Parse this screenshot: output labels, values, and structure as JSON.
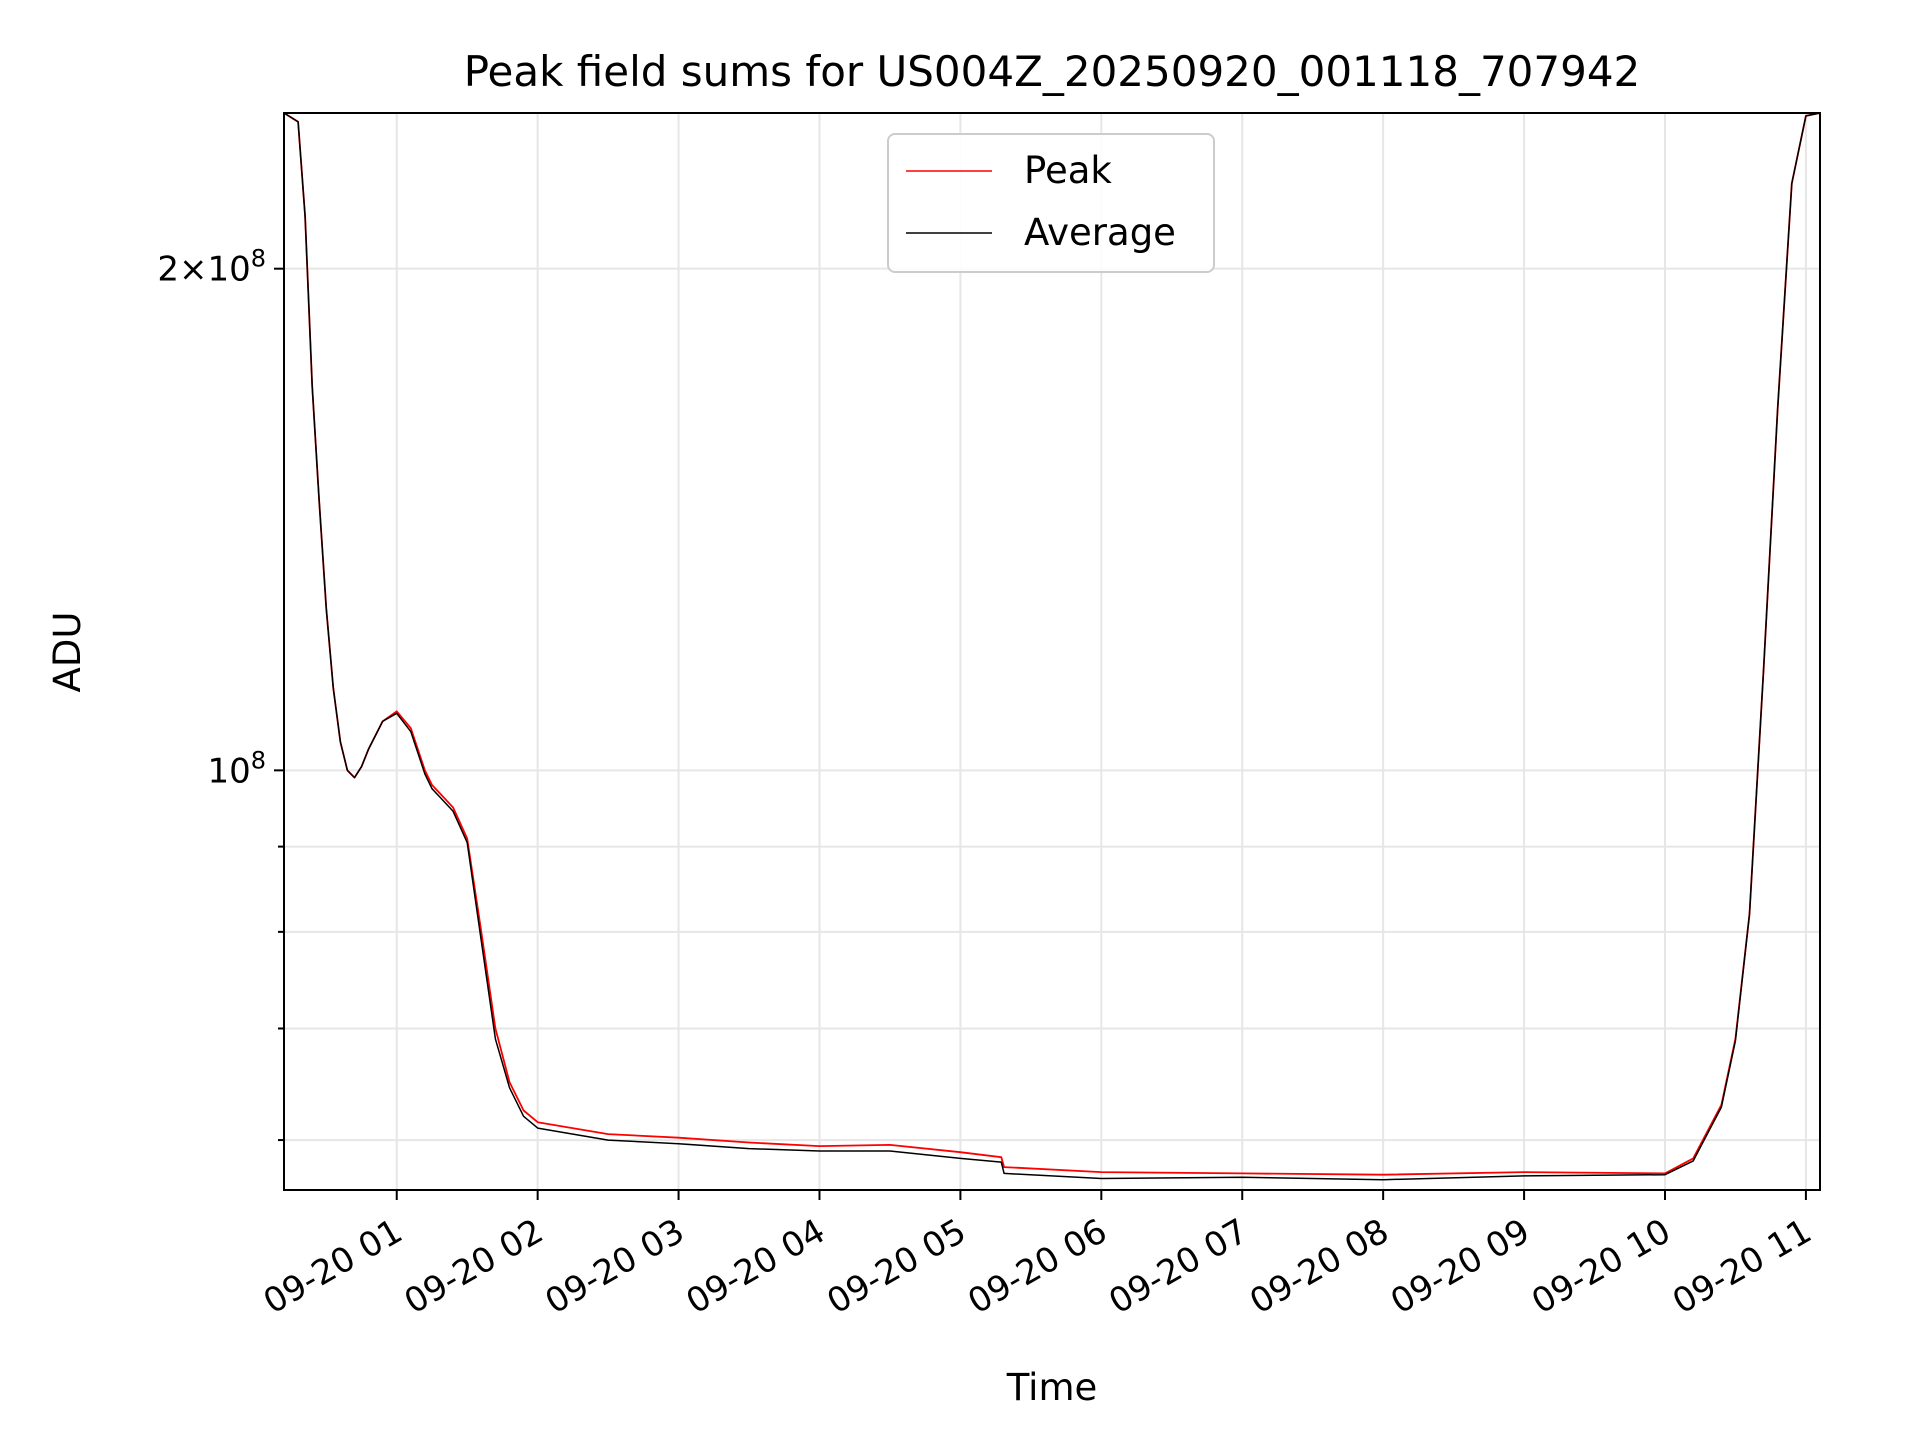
{
  "chart_data": {
    "type": "line",
    "title": "Peak field sums for US004Z_20250920_001118_707942",
    "xlabel": "Time",
    "ylabel": "ADU",
    "yscale": "log",
    "ylim": [
      56000000,
      248000000
    ],
    "xlim_hours": [
      0.2,
      11.1
    ],
    "grid": true,
    "legend_position": "upper center",
    "x_ticks": [
      {
        "hour": 1,
        "label": "09-20 01"
      },
      {
        "hour": 2,
        "label": "09-20 02"
      },
      {
        "hour": 3,
        "label": "09-20 03"
      },
      {
        "hour": 4,
        "label": "09-20 04"
      },
      {
        "hour": 5,
        "label": "09-20 05"
      },
      {
        "hour": 6,
        "label": "09-20 06"
      },
      {
        "hour": 7,
        "label": "09-20 07"
      },
      {
        "hour": 8,
        "label": "09-20 08"
      },
      {
        "hour": 9,
        "label": "09-20 09"
      },
      {
        "hour": 10,
        "label": "09-20 10"
      },
      {
        "hour": 11,
        "label": "09-20 11"
      }
    ],
    "y_major_ticks": [
      {
        "value": 100000000,
        "base": "10",
        "exp": "8",
        "mult": ""
      },
      {
        "value": 200000000,
        "base": "10",
        "exp": "8",
        "mult": "2×"
      }
    ],
    "y_minor_ticks": [
      60000000,
      70000000,
      80000000,
      90000000
    ],
    "x_hours": [
      0.2,
      0.3,
      0.35,
      0.4,
      0.45,
      0.5,
      0.55,
      0.6,
      0.65,
      0.7,
      0.75,
      0.8,
      0.9,
      1.0,
      1.1,
      1.2,
      1.25,
      1.3,
      1.4,
      1.5,
      1.6,
      1.7,
      1.8,
      1.9,
      2.0,
      2.5,
      3.0,
      3.5,
      4.0,
      4.5,
      5.0,
      5.29,
      5.31,
      6.0,
      7.0,
      8.0,
      9.0,
      10.0,
      10.2,
      10.4,
      10.5,
      10.6,
      10.7,
      10.8,
      10.9,
      11.0,
      11.1
    ],
    "series": [
      {
        "name": "Peak",
        "color": "#ff0000",
        "values": [
          248000000,
          245000000,
          215000000,
          170000000,
          145000000,
          125000000,
          112000000,
          104000000,
          100000000,
          99000000,
          100500000,
          103000000,
          107000000,
          108500000,
          106000000,
          100000000,
          98000000,
          97000000,
          95000000,
          91000000,
          80000000,
          70000000,
          65000000,
          62500000,
          61500000,
          60500000,
          60200000,
          59800000,
          59500000,
          59600000,
          59000000,
          58600000,
          57800000,
          57400000,
          57300000,
          57200000,
          57400000,
          57300000,
          58500000,
          63000000,
          69000000,
          82000000,
          115000000,
          165000000,
          225000000,
          247000000,
          248000000
        ]
      },
      {
        "name": "Average",
        "color": "#000000",
        "values": [
          248000000,
          245000000,
          215000000,
          170000000,
          145000000,
          125000000,
          112000000,
          104000000,
          100000000,
          99000000,
          100500000,
          103000000,
          107000000,
          108200000,
          105500000,
          99500000,
          97500000,
          96500000,
          94500000,
          90500000,
          79000000,
          69000000,
          64500000,
          62000000,
          61000000,
          60000000,
          59700000,
          59300000,
          59100000,
          59100000,
          58500000,
          58200000,
          57300000,
          56900000,
          57000000,
          56800000,
          57100000,
          57200000,
          58300000,
          62800000,
          68800000,
          82000000,
          115000000,
          165000000,
          225000000,
          247000000,
          248000000
        ]
      }
    ]
  }
}
